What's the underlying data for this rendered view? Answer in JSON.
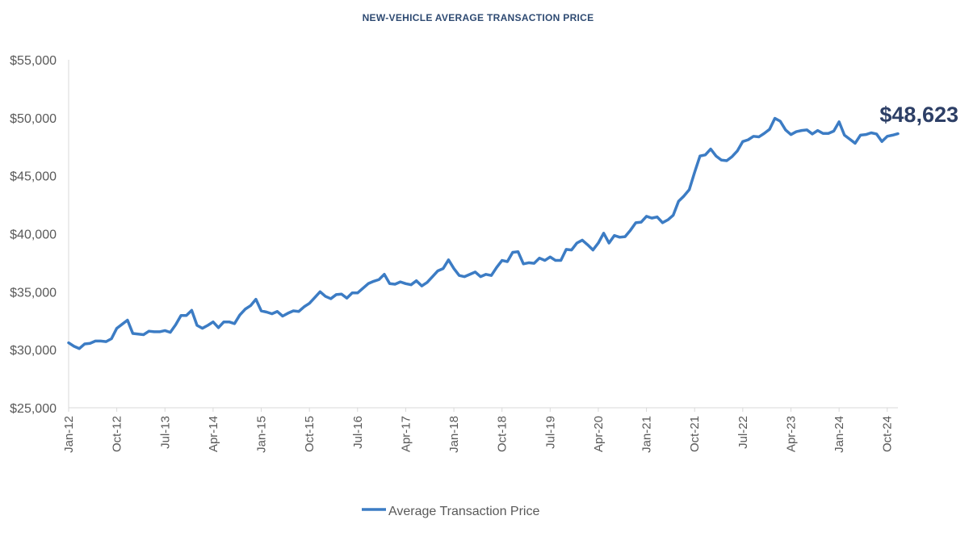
{
  "chart_data": {
    "type": "line",
    "title": "NEW-VEHICLE AVERAGE TRANSACTION PRICE",
    "xlabel": "",
    "ylabel": "",
    "ylim": [
      25000,
      55000
    ],
    "yticks": [
      "$25,000",
      "$30,000",
      "$35,000",
      "$40,000",
      "$45,000",
      "$50,000",
      "$55,000"
    ],
    "ytick_values": [
      25000,
      30000,
      35000,
      40000,
      45000,
      50000,
      55000
    ],
    "xtick_labels": [
      "Jan-12",
      "Oct-12",
      "Jul-13",
      "Apr-14",
      "Jan-15",
      "Oct-15",
      "Jul-16",
      "Apr-17",
      "Jan-18",
      "Oct-18",
      "Jul-19",
      "Apr-20",
      "Jan-21",
      "Oct-21",
      "Jul-22",
      "Apr-23",
      "Jan-24",
      "Oct-24"
    ],
    "x_start": "Jan-12",
    "x_end": "Nov-24",
    "grid": false,
    "legend_position": "bottom",
    "line_color": "#3c7cc4",
    "callout": "$48,623",
    "series": [
      {
        "name": "Average Transaction Price",
        "values": [
          30600,
          30300,
          30100,
          30500,
          30550,
          30750,
          30750,
          30700,
          30950,
          31850,
          32200,
          32550,
          31400,
          31350,
          31300,
          31600,
          31550,
          31550,
          31650,
          31500,
          32150,
          32950,
          32950,
          33400,
          32100,
          31850,
          32100,
          32400,
          31900,
          32400,
          32400,
          32250,
          33000,
          33500,
          33800,
          34350,
          33350,
          33250,
          33100,
          33300,
          32900,
          33150,
          33350,
          33300,
          33700,
          34000,
          34500,
          35000,
          34600,
          34400,
          34750,
          34800,
          34450,
          34900,
          34900,
          35300,
          35700,
          35900,
          36050,
          36500,
          35700,
          35650,
          35850,
          35700,
          35600,
          35950,
          35500,
          35800,
          36300,
          36800,
          37000,
          37750,
          37000,
          36400,
          36300,
          36500,
          36700,
          36300,
          36500,
          36400,
          37100,
          37700,
          37600,
          38400,
          38450,
          37400,
          37500,
          37450,
          37900,
          37700,
          38000,
          37700,
          37700,
          38650,
          38600,
          39200,
          39450,
          39050,
          38600,
          39200,
          40050,
          39200,
          39850,
          39700,
          39750,
          40300,
          40950,
          41000,
          41500,
          41350,
          41450,
          40950,
          41200,
          41600,
          42800,
          43250,
          43800,
          45300,
          46700,
          46800,
          47300,
          46700,
          46350,
          46300,
          46650,
          47150,
          47950,
          48100,
          48400,
          48350,
          48650,
          49000,
          49950,
          49700,
          48950,
          48550,
          48800,
          48900,
          48950,
          48600,
          48900,
          48650,
          48650,
          48850,
          49650,
          48500,
          48150,
          47800,
          48500,
          48550,
          48700,
          48600,
          47950,
          48400,
          48500,
          48623
        ]
      }
    ]
  }
}
